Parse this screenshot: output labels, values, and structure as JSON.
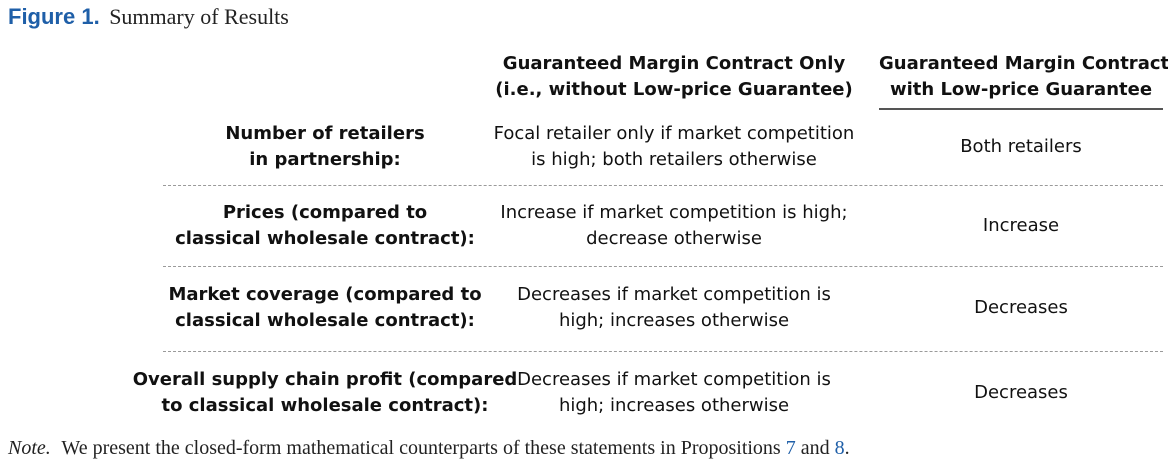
{
  "caption": {
    "label": "Figure 1.",
    "title": "Summary of Results"
  },
  "columns": {
    "col1": [
      "Guaranteed Margin Contract Only",
      "(i.e., without Low-price Guarantee)"
    ],
    "col2": [
      "Guaranteed Margin Contract",
      "with Low-price Guarantee"
    ]
  },
  "rows": [
    {
      "label": [
        "Number of retailers",
        "in partnership:"
      ],
      "col1": [
        "Focal retailer only if market competition",
        "is high; both retailers otherwise"
      ],
      "col2": "Both retailers"
    },
    {
      "label": [
        "Prices (compared to",
        "classical wholesale contract):"
      ],
      "col1": [
        "Increase if market competition is high;",
        "decrease otherwise"
      ],
      "col2": "Increase"
    },
    {
      "label": [
        "Market coverage (compared to",
        "classical wholesale contract):"
      ],
      "col1": [
        "Decreases if market competition is",
        "high; increases otherwise"
      ],
      "col2": "Decreases"
    },
    {
      "label": [
        "Overall supply chain profit (compared",
        "to classical wholesale contract):"
      ],
      "col1": [
        "Decreases if market competition is",
        "high; increases otherwise"
      ],
      "col2": "Decreases"
    }
  ],
  "note": {
    "label": "Note.",
    "text_before": "We present the closed-form mathematical counterparts of these statements in Propositions",
    "ref1": "7",
    "and": "and",
    "ref2": "8",
    "end": "."
  }
}
